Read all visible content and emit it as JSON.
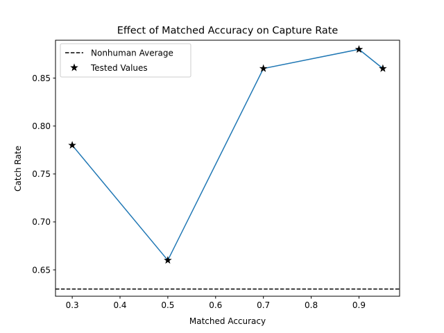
{
  "chart_data": {
    "type": "line",
    "title": "Effect of Matched Accuracy on Capture Rate",
    "xlabel": "Matched Accuracy",
    "ylabel": "Catch Rate",
    "xlim": [
      0.265,
      0.985
    ],
    "ylim": [
      0.6225,
      0.8895
    ],
    "xticks": [
      0.3,
      0.4,
      0.5,
      0.6,
      0.7,
      0.8,
      0.9
    ],
    "xtick_labels": [
      "0.3",
      "0.4",
      "0.5",
      "0.6",
      "0.7",
      "0.8",
      "0.9"
    ],
    "yticks": [
      0.65,
      0.7,
      0.75,
      0.8,
      0.85
    ],
    "ytick_labels": [
      "0.65",
      "0.70",
      "0.75",
      "0.80",
      "0.85"
    ],
    "grid": false,
    "legend_position": "top-left",
    "series": [
      {
        "name": "Tested Values",
        "marker": "star",
        "line_color": "#1f77b4",
        "marker_color": "#000000",
        "x": [
          0.3,
          0.5,
          0.7,
          0.9,
          0.95
        ],
        "y": [
          0.78,
          0.66,
          0.86,
          0.88,
          0.86
        ]
      }
    ],
    "reference_lines": [
      {
        "name": "Nonhuman Average",
        "orientation": "horizontal",
        "y": 0.63,
        "style": "dashed",
        "color": "#000000"
      }
    ],
    "legend": [
      {
        "label": "Nonhuman Average",
        "kind": "dashed-line"
      },
      {
        "label": "Tested Values",
        "kind": "star-marker"
      }
    ]
  }
}
